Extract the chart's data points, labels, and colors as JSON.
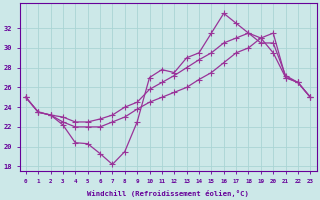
{
  "background_color": "#cce8e8",
  "line_color": "#993399",
  "grid_color": "#aad4d4",
  "ylim": [
    17.5,
    34.5
  ],
  "yticks": [
    18,
    20,
    22,
    24,
    26,
    28,
    30,
    32
  ],
  "xlim": [
    -0.5,
    23.5
  ],
  "xlabel": "Windchill (Refroidissement éolien,°C)",
  "font_color": "#660099",
  "marker": "+",
  "marker_size": 4,
  "series": {
    "spike_line": [
      25.0,
      23.5,
      null,
      22.2,
      20.4,
      20.3,
      19.3,
      18.2,
      19.5,
      22.5,
      27.0,
      28.0,
      27.5,
      29.5,
      29.5,
      33.5,
      32.5,
      32.5,
      null,
      null,
      null,
      null,
      null,
      null
    ],
    "upper_line": [
      25.0,
      null,
      null,
      null,
      null,
      null,
      null,
      null,
      null,
      null,
      null,
      null,
      null,
      null,
      null,
      null,
      null,
      32.0,
      31.5,
      30.5,
      null,
      null,
      26.5,
      25.0
    ],
    "mid_line": [
      25.0,
      null,
      null,
      null,
      null,
      null,
      null,
      null,
      null,
      null,
      null,
      null,
      null,
      null,
      null,
      null,
      null,
      null,
      32.0,
      31.0,
      31.5,
      27.0,
      null,
      25.0
    ],
    "bot_line": [
      25.0,
      null,
      null,
      null,
      null,
      null,
      null,
      null,
      null,
      null,
      null,
      null,
      null,
      null,
      null,
      null,
      null,
      null,
      null,
      null,
      null,
      null,
      null,
      25.0
    ]
  },
  "line1": [
    25.0,
    23.5,
    23.2,
    23.0,
    22.5,
    22.5,
    22.8,
    23.2,
    24.0,
    24.5,
    25.8,
    26.5,
    27.2,
    28.0,
    28.8,
    29.5,
    30.5,
    31.0,
    31.5,
    30.5,
    30.5,
    27.2,
    26.5,
    25.0
  ],
  "line2": [
    25.0,
    23.5,
    23.2,
    22.2,
    20.4,
    20.3,
    19.3,
    18.2,
    19.5,
    22.5,
    27.0,
    27.8,
    27.5,
    29.0,
    29.5,
    31.5,
    33.5,
    32.5,
    31.5,
    31.0,
    29.5,
    27.0,
    26.5,
    25.0
  ],
  "line3": [
    25.0,
    23.5,
    23.2,
    22.5,
    22.0,
    22.0,
    22.0,
    22.5,
    23.0,
    23.8,
    24.5,
    25.0,
    25.5,
    26.0,
    26.8,
    27.5,
    28.5,
    29.5,
    30.0,
    31.0,
    31.5,
    27.0,
    26.5,
    25.0
  ]
}
